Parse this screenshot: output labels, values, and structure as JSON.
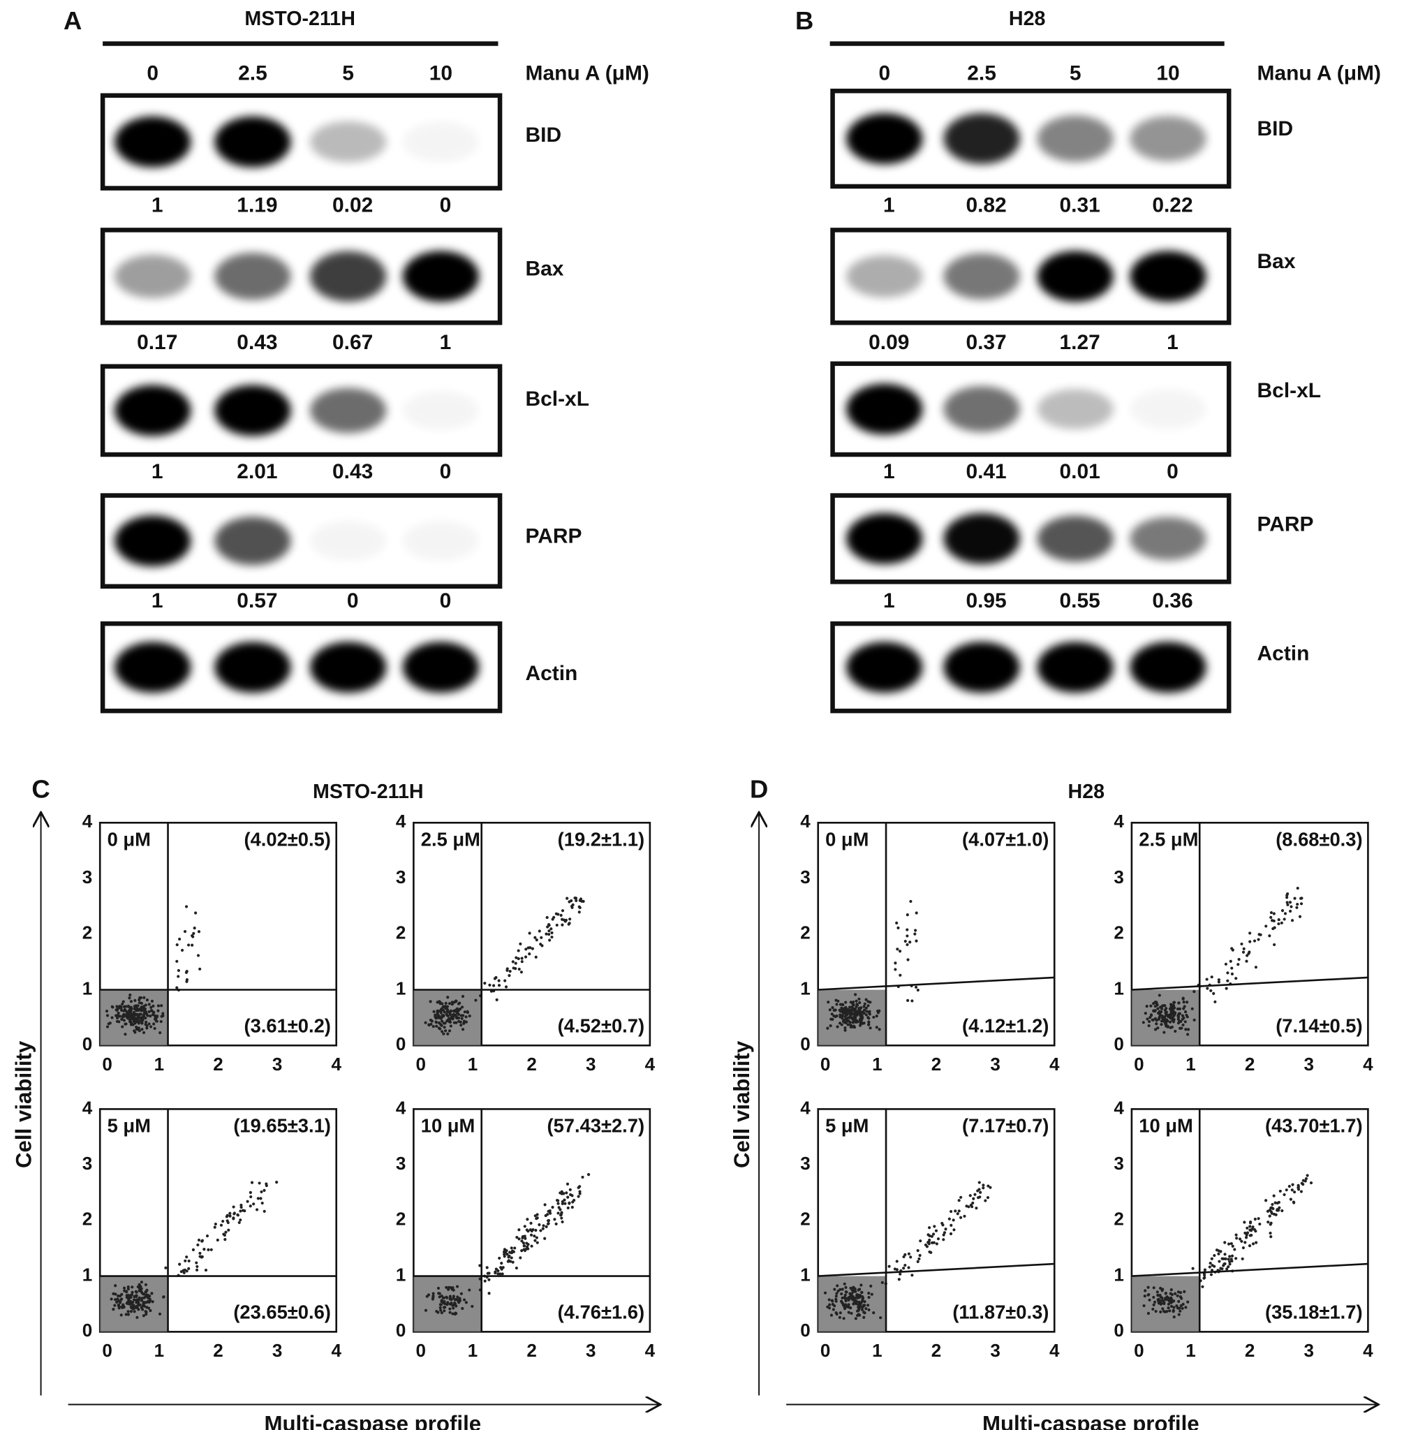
{
  "blots": [
    {
      "label": "A",
      "cell_line": "MSTO-211H",
      "dose_label": "Manu A (μM)",
      "doses": [
        "0",
        "2.5",
        "5",
        "10"
      ],
      "proteins": [
        {
          "name": "BID",
          "quant": [
            "1",
            "1.19",
            "0.02",
            "0"
          ]
        },
        {
          "name": "Bax",
          "quant": [
            "0.17",
            "0.43",
            "0.67",
            "1"
          ]
        },
        {
          "name": "Bcl-xL",
          "quant": [
            "1",
            "2.01",
            "0.43",
            "0"
          ]
        },
        {
          "name": "PARP",
          "quant": [
            "1",
            "0.57",
            "0",
            "0"
          ]
        },
        {
          "name": "Actin"
        }
      ]
    },
    {
      "label": "B",
      "cell_line": "H28",
      "dose_label": "Manu A (μM)",
      "doses": [
        "0",
        "2.5",
        "5",
        "10"
      ],
      "proteins": [
        {
          "name": "BID",
          "quant": [
            "1",
            "0.82",
            "0.31",
            "0.22"
          ]
        },
        {
          "name": "Bax",
          "quant": [
            "0.09",
            "0.37",
            "1.27",
            "1"
          ]
        },
        {
          "name": "Bcl-xL",
          "quant": [
            "1",
            "0.41",
            "0.01",
            "0"
          ]
        },
        {
          "name": "PARP",
          "quant": [
            "1",
            "0.95",
            "0.55",
            "0.36"
          ]
        },
        {
          "name": "Actin"
        }
      ]
    }
  ],
  "flow": [
    {
      "label": "C",
      "cell_line": "MSTO-211H",
      "y_label": "Cell viability",
      "x_label": "Multi-caspase profile",
      "ticks": [
        "0",
        "1",
        "2",
        "3",
        "4"
      ],
      "plots": [
        {
          "dose": "0 μM",
          "upper": "(4.02±0.5)",
          "lower": "(3.61±0.2)"
        },
        {
          "dose": "2.5 μM",
          "upper": "(19.2±1.1)",
          "lower": "(4.52±0.7)"
        },
        {
          "dose": "5 μM",
          "upper": "(19.65±3.1)",
          "lower": "(23.65±0.6)"
        },
        {
          "dose": "10 μM",
          "upper": "(57.43±2.7)",
          "lower": "(4.76±1.6)"
        }
      ]
    },
    {
      "label": "D",
      "cell_line": "H28",
      "y_label": "Cell viability",
      "x_label": "Multi-caspase profile",
      "ticks": [
        "0",
        "1",
        "2",
        "3",
        "4"
      ],
      "plots": [
        {
          "dose": "0 μM",
          "upper": "(4.07±1.0)",
          "lower": "(4.12±1.2)"
        },
        {
          "dose": "2.5 μM",
          "upper": "(8.68±0.3)",
          "lower": "(7.14±0.5)"
        },
        {
          "dose": "5 μM",
          "upper": "(7.17±0.7)",
          "lower": "(11.87±0.3)"
        },
        {
          "dose": "10 μM",
          "upper": "(43.70±1.7)",
          "lower": "(35.18±1.7)"
        }
      ]
    }
  ]
}
